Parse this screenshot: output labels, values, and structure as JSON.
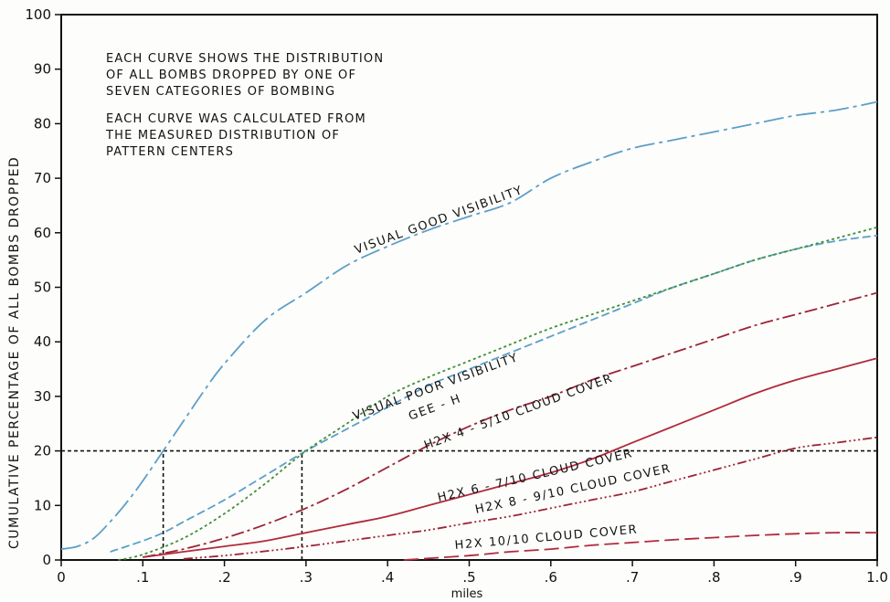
{
  "chart_data": {
    "type": "line",
    "title": "",
    "xlabel": "miles",
    "ylabel": "CUMULATIVE PERCENTAGE OF ALL BOMBS DROPPED",
    "xlim": [
      0,
      1.0
    ],
    "ylim": [
      0,
      100
    ],
    "x_ticks": [
      0,
      0.1,
      0.2,
      0.3,
      0.4,
      0.5,
      0.6,
      0.7,
      0.8,
      0.9,
      1.0
    ],
    "x_tick_labels": [
      "0",
      ".1",
      ".2",
      ".3",
      ".4",
      ".5",
      ".6",
      ".7",
      ".8",
      ".9",
      "1.0"
    ],
    "y_ticks": [
      0,
      10,
      20,
      30,
      40,
      50,
      60,
      70,
      80,
      90,
      100
    ],
    "y_tick_labels": [
      "0",
      "10",
      "20",
      "30",
      "40",
      "50",
      "60",
      "70",
      "80",
      "90",
      "100"
    ],
    "grid": false,
    "legend": "none",
    "annotations": [
      "EACH CURVE SHOWS THE DISTRIBUTION",
      "OF ALL BOMBS DROPPED BY ONE OF",
      "SEVEN CATEGORIES OF BOMBING",
      "EACH CURVE WAS CALCULATED FROM",
      "THE MEASURED DISTRIBUTION OF",
      "PATTERN CENTERS"
    ],
    "reference_lines": [
      {
        "type": "horizontal",
        "y": 20,
        "x_range": [
          0,
          1.0
        ]
      },
      {
        "type": "vertical",
        "x": 0.125,
        "y_range": [
          0,
          20
        ]
      },
      {
        "type": "vertical",
        "x": 0.295,
        "y_range": [
          0,
          20
        ]
      }
    ],
    "series": [
      {
        "name": "VISUAL GOOD VISIBILITY",
        "color": "#5b9fc8",
        "dash": "22 5 4 5",
        "x": [
          0,
          0.02,
          0.04,
          0.06,
          0.08,
          0.1,
          0.125,
          0.15,
          0.175,
          0.2,
          0.25,
          0.3,
          0.35,
          0.4,
          0.45,
          0.5,
          0.55,
          0.6,
          0.65,
          0.7,
          0.75,
          0.8,
          0.85,
          0.9,
          0.95,
          1.0
        ],
        "y": [
          2,
          2.5,
          4,
          7,
          10.5,
          14.5,
          20,
          25.5,
          31,
          36,
          44,
          49,
          54,
          57.5,
          60.5,
          63,
          65.5,
          70,
          73,
          75.5,
          77,
          78.5,
          80,
          81.5,
          82.5,
          84
        ]
      },
      {
        "name": "VISUAL POOR VISIBILITY",
        "color": "#5b9fc8",
        "dash": "9 4",
        "x": [
          0.06,
          0.1,
          0.125,
          0.15,
          0.2,
          0.25,
          0.3,
          0.35,
          0.4,
          0.45,
          0.5,
          0.55,
          0.6,
          0.65,
          0.7,
          0.75,
          0.8,
          0.85,
          0.9,
          0.95,
          1.0
        ],
        "y": [
          1.5,
          3.5,
          5,
          7,
          11,
          15.5,
          20,
          24,
          28,
          32,
          35,
          38,
          41,
          44,
          47,
          50,
          52.5,
          55,
          57,
          58.5,
          59.5
        ]
      },
      {
        "name": "GEE - H",
        "color": "#3f8f3a",
        "dash": "3 3",
        "x": [
          0.07,
          0.1,
          0.15,
          0.2,
          0.25,
          0.3,
          0.35,
          0.4,
          0.45,
          0.5,
          0.55,
          0.6,
          0.65,
          0.7,
          0.75,
          0.8,
          0.85,
          0.9,
          0.95,
          1.0
        ],
        "y": [
          0,
          1,
          4,
          8.5,
          14,
          20,
          25,
          30,
          33.5,
          36.5,
          39.5,
          42.5,
          45,
          47.5,
          50,
          52.5,
          55,
          57,
          59,
          61
        ]
      },
      {
        "name": "H2X 4 - 5/10 CLOUD COVER",
        "color": "#9b2535",
        "dash": "14 4 3 4",
        "x": [
          0.1,
          0.15,
          0.2,
          0.25,
          0.3,
          0.35,
          0.4,
          0.45,
          0.5,
          0.55,
          0.6,
          0.65,
          0.7,
          0.75,
          0.8,
          0.85,
          0.9,
          0.95,
          1.0
        ],
        "y": [
          0.5,
          2,
          4,
          6.5,
          9.5,
          13,
          17,
          21,
          24.5,
          27.5,
          30,
          33,
          35.5,
          38,
          40.5,
          43,
          45,
          47,
          49
        ]
      },
      {
        "name": "H2X 6 - 7/10 CLOUD COVER",
        "color": "#b02a3c",
        "dash": "none",
        "x": [
          0.1,
          0.15,
          0.2,
          0.25,
          0.3,
          0.35,
          0.4,
          0.45,
          0.5,
          0.55,
          0.6,
          0.65,
          0.7,
          0.75,
          0.8,
          0.85,
          0.9,
          0.95,
          1.0
        ],
        "y": [
          0.5,
          1.5,
          2.5,
          3.5,
          5,
          6.5,
          8,
          10,
          12,
          14,
          16,
          18.5,
          21.5,
          24.5,
          27.5,
          30.5,
          33,
          35,
          37
        ]
      },
      {
        "name": "H2X 8 - 9/10 CLOUD COVER",
        "color": "#9b2535",
        "dash": "10 3 2 3 2 3 2 3",
        "x": [
          0.15,
          0.2,
          0.25,
          0.3,
          0.35,
          0.4,
          0.45,
          0.5,
          0.55,
          0.6,
          0.65,
          0.7,
          0.75,
          0.8,
          0.85,
          0.9,
          0.95,
          1.0
        ],
        "y": [
          0.2,
          0.8,
          1.6,
          2.5,
          3.5,
          4.5,
          5.5,
          6.8,
          8,
          9.5,
          11,
          12.5,
          14.5,
          16.5,
          18.5,
          20.5,
          21.5,
          22.5
        ]
      },
      {
        "name": "H2X 10/10 CLOUD COVER",
        "color": "#b02a3c",
        "dash": "16 6",
        "x": [
          0.42,
          0.5,
          0.55,
          0.6,
          0.65,
          0.7,
          0.75,
          0.8,
          0.85,
          0.9,
          0.95,
          1.0
        ],
        "y": [
          0,
          0.8,
          1.5,
          2,
          2.7,
          3.2,
          3.7,
          4.1,
          4.5,
          4.8,
          5,
          5
        ]
      }
    ]
  }
}
